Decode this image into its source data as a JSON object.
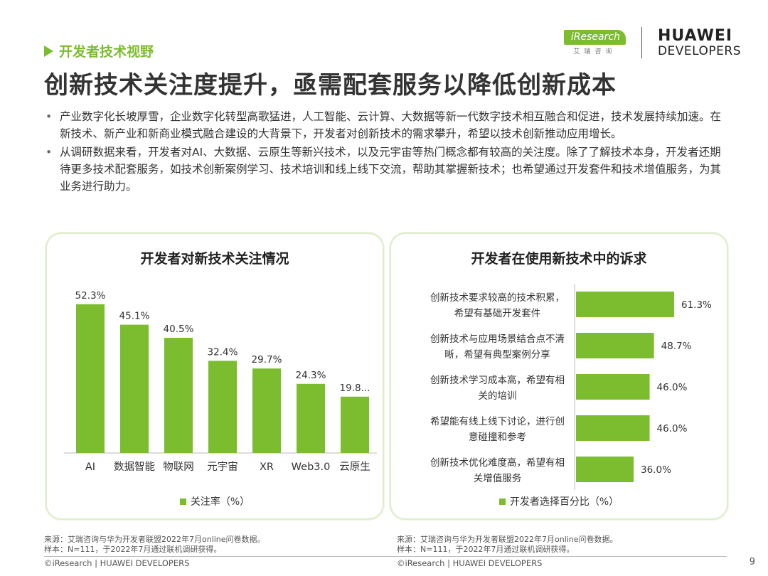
{
  "header": {
    "section": "开发者技术视野",
    "title": "创新技术关注度提升，亟需配套服务以降低创新成本"
  },
  "logos": {
    "iresearch": "iResearch",
    "iresearch_cn": "艾瑞咨询",
    "huawei_line1": "HUAWEI",
    "huawei_line2": "DEVELOPERS"
  },
  "bullets": [
    "产业数字化长坡厚雪，企业数字化转型高歌猛进，人工智能、云计算、大数据等新一代数字技术相互融合和促进，技术发展持续加速。在新技术、新产业和新商业模式融合建设的大背景下，开发者对创新技术的需求攀升，希望以技术创新推动应用增长。",
    "从调研数据来看，开发者对AI、大数据、云原生等新兴技术，以及元宇宙等热门概念都有较高的关注度。除了了解技术本身，开发者还期待更多技术配套服务，如技术创新案例学习、技术培训和线上线下交流，帮助其掌握新技术；也希望通过开发套件和技术增值服务，为其业务进行助力。"
  ],
  "colors": {
    "accent": "#7cbc2f",
    "panel_border": "#dfeccb"
  },
  "chart_data": [
    {
      "type": "bar",
      "title": "开发者对新技术关注情况",
      "categories": [
        "AI",
        "数据智能",
        "物联网",
        "元宇宙",
        "XR",
        "Web3.0",
        "云原生"
      ],
      "values": [
        52.3,
        45.1,
        40.5,
        32.4,
        29.7,
        24.3,
        19.8
      ],
      "labels": [
        "52.3%",
        "45.1%",
        "40.5%",
        "32.4%",
        "29.7%",
        "24.3%",
        "19.8..."
      ],
      "legend": "关注率（%）",
      "ylim": [
        0,
        55
      ],
      "orientation": "vertical"
    },
    {
      "type": "bar",
      "title": "开发者在使用新技术中的诉求",
      "categories": [
        [
          "创新技术要求较高的技术积累，",
          "希望有基础开发套件"
        ],
        [
          "创新技术与应用场景结合点不清",
          "晰，希望有典型案例分享"
        ],
        [
          "创新技术学习成本高，希望有相",
          "关的培训"
        ],
        [
          "希望能有线上线下讨论，进行创",
          "意碰撞和参考"
        ],
        [
          "创新技术优化难度高，希望有相",
          "关增值服务"
        ]
      ],
      "values": [
        61.3,
        48.7,
        46.0,
        46.0,
        36.0
      ],
      "labels": [
        "61.3%",
        "48.7%",
        "46.0%",
        "46.0%",
        "36.0%"
      ],
      "legend": "开发者选择百分比（%）",
      "xlim": [
        0,
        61.3
      ],
      "orientation": "horizontal"
    }
  ],
  "sources": {
    "left_line1": "来源：艾瑞咨询与华为开发者联盟2022年7月online问卷数据。",
    "left_line2": "样本：N=111，于2022年7月通过联机调研获得。",
    "right_line1": "来源：艾瑞咨询与华为开发者联盟2022年7月online问卷数据。",
    "right_line2": "样本：N=111，于2022年7月通过联机调研获得。"
  },
  "footer": {
    "left": "©iResearch | HUAWEI DEVELOPERS",
    "right": "©iResearch | HUAWEI DEVELOPERS",
    "page": "9"
  }
}
